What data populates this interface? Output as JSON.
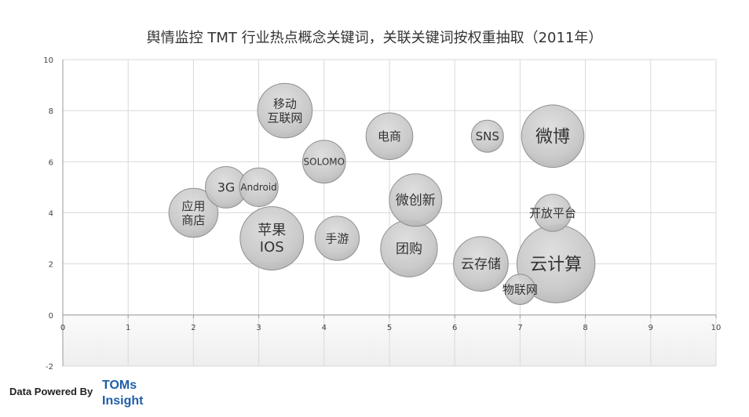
{
  "chart_data": {
    "type": "bubble",
    "title": "舆情监控 TMT 行业热点概念关键词，关联关键词按权重抽取（2011年）",
    "xlim": [
      0,
      10
    ],
    "ylim": [
      -2,
      10
    ],
    "x_ticks": [
      "0",
      "1",
      "2",
      "3",
      "4",
      "5",
      "6",
      "7",
      "8",
      "9",
      "10"
    ],
    "y_ticks": [
      "-2",
      "0",
      "2",
      "4",
      "6",
      "8",
      "10"
    ],
    "grid": true,
    "points": [
      {
        "label": "云计算",
        "x": 7.55,
        "y": 2.0,
        "size": 5.3
      },
      {
        "label": "微博",
        "x": 7.5,
        "y": 7.0,
        "size": 3.4
      },
      {
        "label": "苹果\nIOS",
        "x": 3.2,
        "y": 3.0,
        "size": 3.5
      },
      {
        "label": "团购",
        "x": 5.3,
        "y": 2.6,
        "size": 2.8
      },
      {
        "label": "云存储",
        "x": 6.4,
        "y": 2.0,
        "size": 2.6
      },
      {
        "label": "移动\n互联网",
        "x": 3.4,
        "y": 8.0,
        "size": 2.6
      },
      {
        "label": "微创新",
        "x": 5.4,
        "y": 4.5,
        "size": 2.4
      },
      {
        "label": "应用\n商店",
        "x": 2.0,
        "y": 4.0,
        "size": 2.1
      },
      {
        "label": "电商",
        "x": 5.0,
        "y": 7.0,
        "size": 1.9
      },
      {
        "label": "手游",
        "x": 4.2,
        "y": 3.0,
        "size": 1.7
      },
      {
        "label": "SOLOMO",
        "x": 4.0,
        "y": 6.0,
        "size": 1.6
      },
      {
        "label": "3G",
        "x": 2.5,
        "y": 5.0,
        "size": 1.5
      },
      {
        "label": "Android",
        "x": 3.0,
        "y": 5.0,
        "size": 1.3
      },
      {
        "label": "开放平台",
        "x": 7.5,
        "y": 4.0,
        "size": 1.2
      },
      {
        "label": "SNS",
        "x": 6.5,
        "y": 7.0,
        "size": 0.9
      },
      {
        "label": "物联网",
        "x": 7.0,
        "y": 1.0,
        "size": 0.8
      }
    ]
  },
  "footer": {
    "powered_by": "Data Powered By",
    "brand_line1": "TOMs",
    "brand_line2": "Insight"
  }
}
